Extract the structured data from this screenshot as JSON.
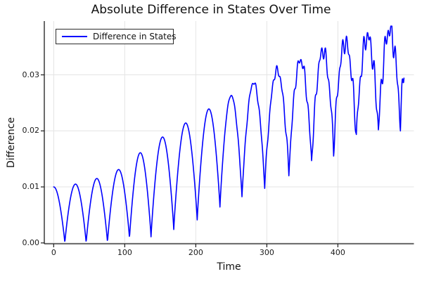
{
  "chart_data": {
    "type": "line",
    "title": "Absolute Difference in States Over Time",
    "xlabel": "Time",
    "ylabel": "Difference",
    "grid": true,
    "legend": {
      "position": "top-left",
      "entries": [
        {
          "label": "Difference in States",
          "color": "#0000ff"
        }
      ]
    },
    "colors": {
      "line": "#0000ff",
      "grid": "#e4e4e4",
      "axis": "#1c1c1c",
      "background": "#ffffff",
      "text": "#111111"
    },
    "xlim": [
      -13.2,
      507
    ],
    "ylim": [
      -0.00015,
      0.0396
    ],
    "xticks": [
      0,
      100,
      200,
      300,
      400
    ],
    "xtick_labels": [
      "0",
      "100",
      "200",
      "300",
      "400"
    ],
    "yticks": [
      0,
      0.01,
      0.02,
      0.03
    ],
    "ytick_labels": [
      "0.00",
      "0.01",
      "0.02",
      "0.03"
    ],
    "series": [
      {
        "name": "Difference in States",
        "description": "Oscillating absolute difference: arches of period ~31 whose maxima grow from 0.010 to 0.038 and whose minima lift off zero after t~100; high-frequency jitter appears after t~235.",
        "start_point": [
          0,
          0.01
        ],
        "end_point": [
          493,
          0.032
        ],
        "oscillation_period": 31,
        "peaks": [
          [
            0,
            0.01
          ],
          [
            30.7,
            0.0105
          ],
          [
            60.7,
            0.0115
          ],
          [
            91.2,
            0.0131
          ],
          [
            121.9,
            0.0161
          ],
          [
            153,
            0.0189
          ],
          [
            185.5,
            0.0214
          ],
          [
            218,
            0.0239
          ],
          [
            249.5,
            0.0263
          ],
          [
            281,
            0.0286
          ],
          [
            314,
            0.0308
          ],
          [
            347,
            0.0326
          ],
          [
            378.5,
            0.0343
          ],
          [
            410,
            0.0357
          ],
          [
            441.5,
            0.0368
          ],
          [
            472.5,
            0.038
          ]
        ],
        "troughs": [
          [
            -15.5,
            0.0
          ],
          [
            15.7,
            0.0
          ],
          [
            45.7,
            0.0
          ],
          [
            75.7,
            0.0001
          ],
          [
            106.7,
            0.0008
          ],
          [
            137,
            0.0011
          ],
          [
            169,
            0.0024
          ],
          [
            202,
            0.0041
          ],
          [
            234,
            0.0064
          ],
          [
            265,
            0.0082
          ],
          [
            297,
            0.0101
          ],
          [
            331,
            0.0124
          ],
          [
            363,
            0.0144
          ],
          [
            394,
            0.0168
          ],
          [
            426,
            0.0191
          ],
          [
            457,
            0.0201
          ],
          [
            488,
            0.0213
          ]
        ],
        "jitter": {
          "start_t": 235,
          "max_amp": 0.0028,
          "period1": 4.9,
          "period2": 7.63,
          "w1": 0.55,
          "w2": 0.45,
          "phase1": 1.2,
          "phase2": 0.4
        },
        "value_clamp": [
          3e-05,
          0.0387
        ]
      }
    ]
  }
}
